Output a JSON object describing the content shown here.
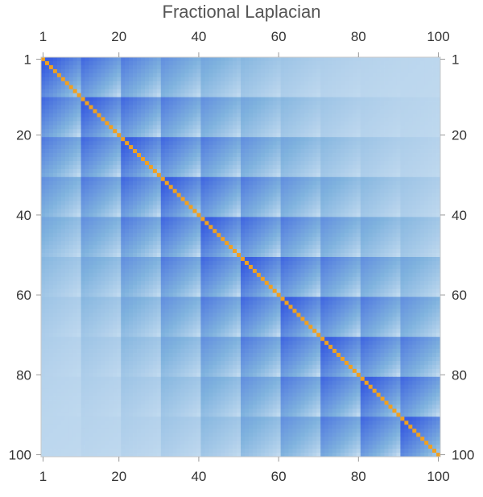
{
  "chart_data": {
    "type": "heatmap",
    "title": "Fractional Laplacian",
    "rows": 100,
    "cols": 100,
    "x_ticks": [
      1,
      20,
      40,
      60,
      80,
      100
    ],
    "y_ticks": [
      1,
      20,
      40,
      60,
      80,
      100
    ],
    "x_tick_labels": [
      "1",
      "20",
      "40",
      "60",
      "80",
      "100"
    ],
    "y_tick_labels": [
      "1",
      "20",
      "40",
      "60",
      "80",
      "100"
    ],
    "block_size": 10,
    "diagonal_color": "#f0a020",
    "colors": {
      "low": "#ffffff",
      "mid": "#7fb2de",
      "high": "#3a5fe0"
    },
    "frame_color": "#c8c8c8"
  }
}
